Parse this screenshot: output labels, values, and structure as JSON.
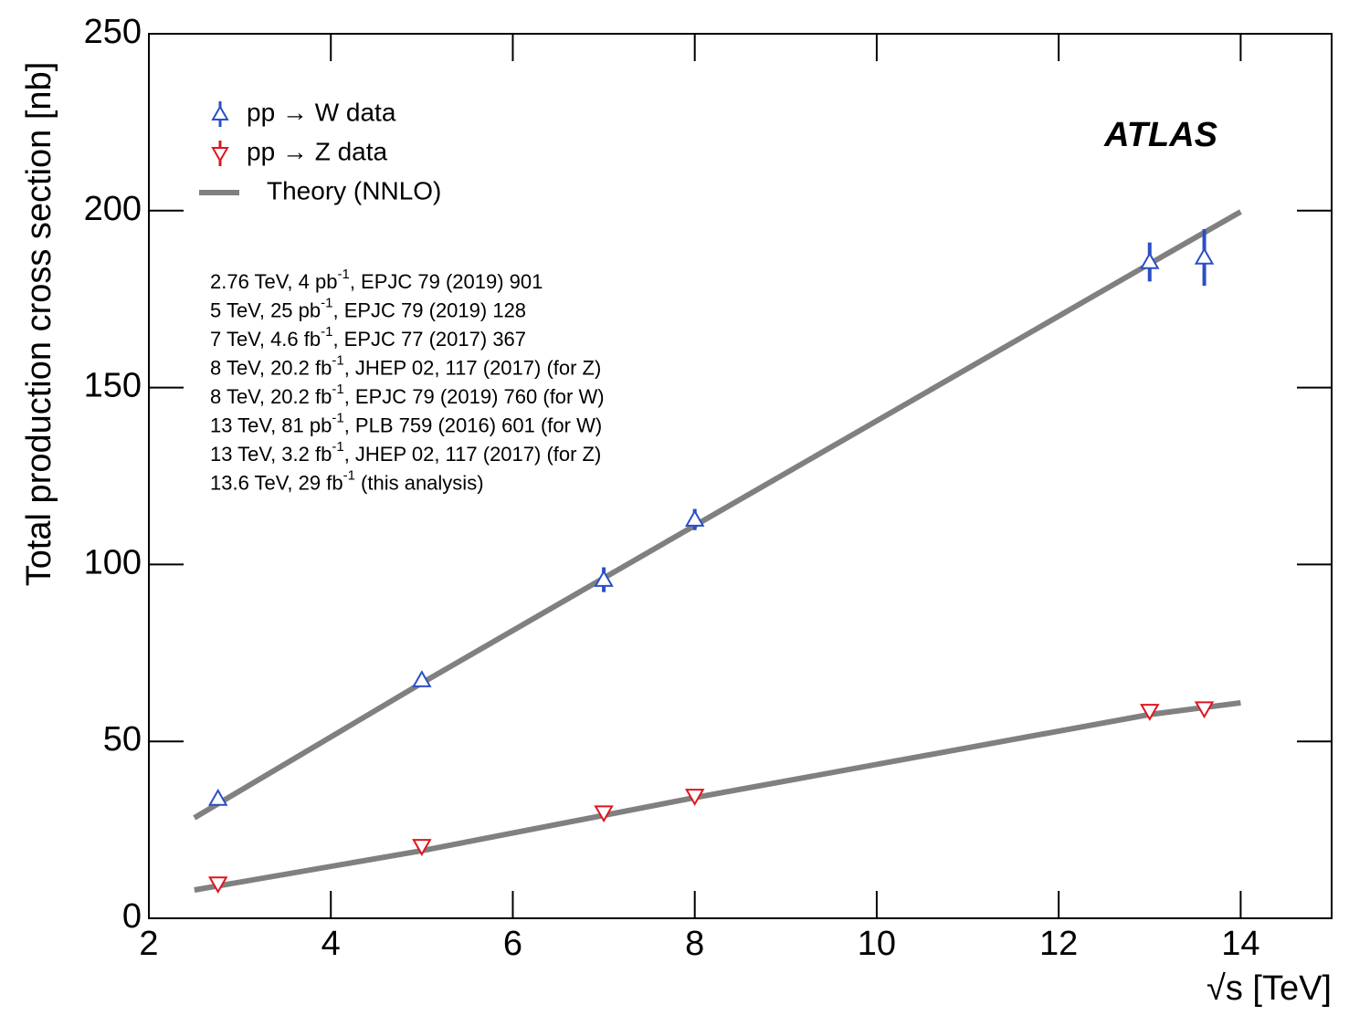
{
  "chart_data": {
    "type": "scatter",
    "ylabel": "Total production cross section [nb]",
    "xlabel": "√s  [TeV]",
    "xlim": [
      2,
      15
    ],
    "xticks": [
      2,
      4,
      6,
      8,
      10,
      12,
      14
    ],
    "ylim": [
      0,
      250
    ],
    "yticks": [
      0,
      50,
      100,
      150,
      200,
      250
    ],
    "grid": false,
    "experiment": "ATLAS",
    "series": [
      {
        "name": "pp → W data",
        "color": "#2a4fc6",
        "marker": "triangle-up",
        "x": [
          2.76,
          5,
          7,
          8,
          13,
          13.6
        ],
        "values": [
          33.8,
          67.3,
          95.7,
          112.7,
          185.5,
          186.8
        ],
        "errors": [
          1.2,
          1.5,
          3.5,
          3,
          5.5,
          8
        ]
      },
      {
        "name": "pp → Z data",
        "color": "#e0141e",
        "marker": "triangle-down",
        "x": [
          2.76,
          5,
          7,
          8,
          13,
          13.6
        ],
        "values": [
          9.8,
          20.4,
          29.9,
          34.6,
          58.6,
          59.3
        ],
        "errors": [
          0.5,
          0.6,
          0.8,
          0.9,
          1.3,
          1.6
        ]
      },
      {
        "name": "Theory (NNLO)",
        "color": "#808080",
        "marker": "line",
        "x": [
          2.5,
          5,
          8,
          13,
          14
        ],
        "values": [
          28.4,
          66.5,
          111,
          185,
          199.7
        ]
      },
      {
        "name": "Theory (NNLO)",
        "color": "#808080",
        "marker": "line",
        "x": [
          2.5,
          5,
          8,
          13,
          14
        ],
        "values": [
          8,
          19.1,
          34.1,
          57.6,
          60.9
        ]
      }
    ],
    "annotations": [
      {
        "pre": "2.76 TeV, 4 pb",
        "sup": "-1",
        "post": ", EPJC 79 (2019) 901"
      },
      {
        "pre": "5 TeV, 25 pb",
        "sup": "-1",
        "post": ", EPJC 79 (2019) 128"
      },
      {
        "pre": "7 TeV, 4.6 fb",
        "sup": "-1",
        "post": ", EPJC 77 (2017) 367"
      },
      {
        "pre": "8 TeV, 20.2 fb",
        "sup": "-1",
        "post": ", JHEP 02, 117 (2017) (for Z)"
      },
      {
        "pre": "8 TeV, 20.2 fb",
        "sup": "-1",
        "post": ", EPJC 79 (2019) 760 (for W)"
      },
      {
        "pre": "13 TeV, 81 pb",
        "sup": "-1",
        "post": ", PLB 759 (2016) 601 (for W)"
      },
      {
        "pre": "13 TeV, 3.2 fb",
        "sup": "-1",
        "post": ", JHEP 02, 117 (2017) (for Z)"
      },
      {
        "pre": "13.6 TeV, 29 fb",
        "sup": "-1",
        "post": " (this analysis)"
      }
    ]
  }
}
